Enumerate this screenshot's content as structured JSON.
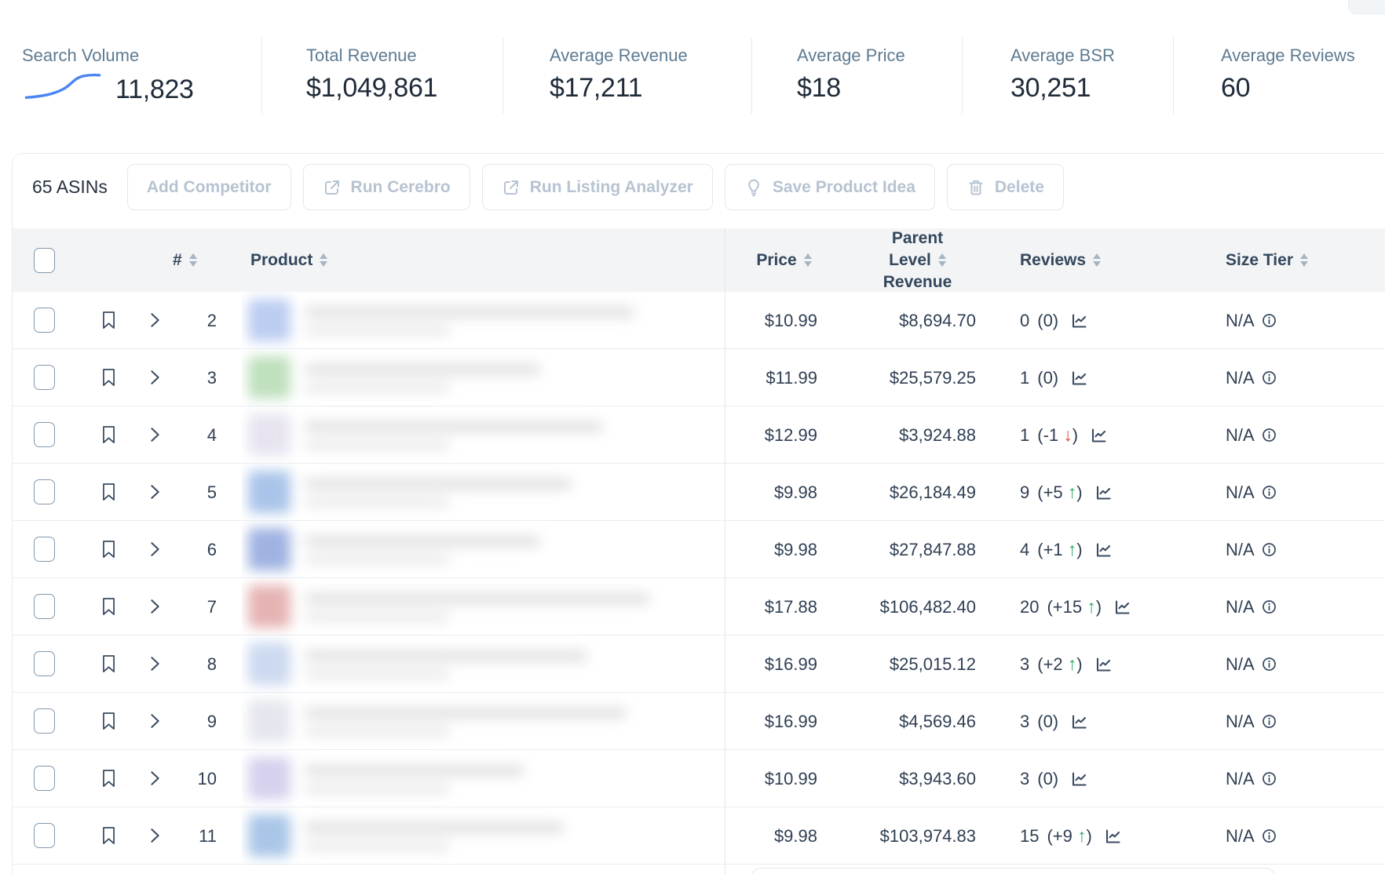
{
  "stats": [
    {
      "label": "Search Volume",
      "value": "11,823",
      "has_sparkline": true
    },
    {
      "label": "Total Revenue",
      "value": "$1,049,861",
      "has_sparkline": false
    },
    {
      "label": "Average Revenue",
      "value": "$17,211",
      "has_sparkline": false
    },
    {
      "label": "Average Price",
      "value": "$18",
      "has_sparkline": false
    },
    {
      "label": "Average BSR",
      "value": "30,251",
      "has_sparkline": false
    },
    {
      "label": "Average Reviews",
      "value": "60",
      "has_sparkline": false
    }
  ],
  "toolbar": {
    "asin_count": "65 ASINs",
    "add_competitor": "Add Competitor",
    "run_cerebro": "Run Cerebro",
    "run_listing_analyzer": "Run Listing Analyzer",
    "save_product_idea": "Save Product Idea",
    "delete": "Delete"
  },
  "table": {
    "headers": {
      "num": "#",
      "product": "Product",
      "price": "Price",
      "parent_line1": "Parent",
      "parent_line2": "Level",
      "parent_line3": "Revenue",
      "reviews": "Reviews",
      "size_tier": "Size Tier"
    },
    "rows": [
      {
        "num": "2",
        "price": "$10.99",
        "revenue": "$8,694.70",
        "reviews": "0",
        "delta": "0",
        "trend": "none",
        "size_tier": "N/A",
        "thumb": "#bccdf2"
      },
      {
        "num": "3",
        "price": "$11.99",
        "revenue": "$25,579.25",
        "reviews": "1",
        "delta": "0",
        "trend": "none",
        "size_tier": "N/A",
        "thumb": "#bfe0bd"
      },
      {
        "num": "4",
        "price": "$12.99",
        "revenue": "$3,924.88",
        "reviews": "1",
        "delta": "-1",
        "trend": "down",
        "size_tier": "N/A",
        "thumb": "#e7e4f0"
      },
      {
        "num": "5",
        "price": "$9.98",
        "revenue": "$26,184.49",
        "reviews": "9",
        "delta": "+5",
        "trend": "up",
        "size_tier": "N/A",
        "thumb": "#a9c4ea"
      },
      {
        "num": "6",
        "price": "$9.98",
        "revenue": "$27,847.88",
        "reviews": "4",
        "delta": "+1",
        "trend": "up",
        "size_tier": "N/A",
        "thumb": "#9fb2e2"
      },
      {
        "num": "7",
        "price": "$17.88",
        "revenue": "$106,482.40",
        "reviews": "20",
        "delta": "+15",
        "trend": "up",
        "size_tier": "N/A",
        "thumb": "#e6b3b3"
      },
      {
        "num": "8",
        "price": "$16.99",
        "revenue": "$25,015.12",
        "reviews": "3",
        "delta": "+2",
        "trend": "up",
        "size_tier": "N/A",
        "thumb": "#ccd9f0"
      },
      {
        "num": "9",
        "price": "$16.99",
        "revenue": "$4,569.46",
        "reviews": "3",
        "delta": "0",
        "trend": "none",
        "size_tier": "N/A",
        "thumb": "#e4e7ee"
      },
      {
        "num": "10",
        "price": "$10.99",
        "revenue": "$3,943.60",
        "reviews": "3",
        "delta": "0",
        "trend": "none",
        "size_tier": "N/A",
        "thumb": "#d6d1ee"
      },
      {
        "num": "11",
        "price": "$9.98",
        "revenue": "$103,974.83",
        "reviews": "15",
        "delta": "+9",
        "trend": "up",
        "size_tier": "N/A",
        "thumb": "#a9c6e8"
      }
    ]
  },
  "colors": {
    "accent_blue": "#4a86f2",
    "positive_green": "#2fa866",
    "negative_red": "#e2473d",
    "disabled_button_text": "#b7c3d1",
    "header_background": "#f2f4f6"
  }
}
